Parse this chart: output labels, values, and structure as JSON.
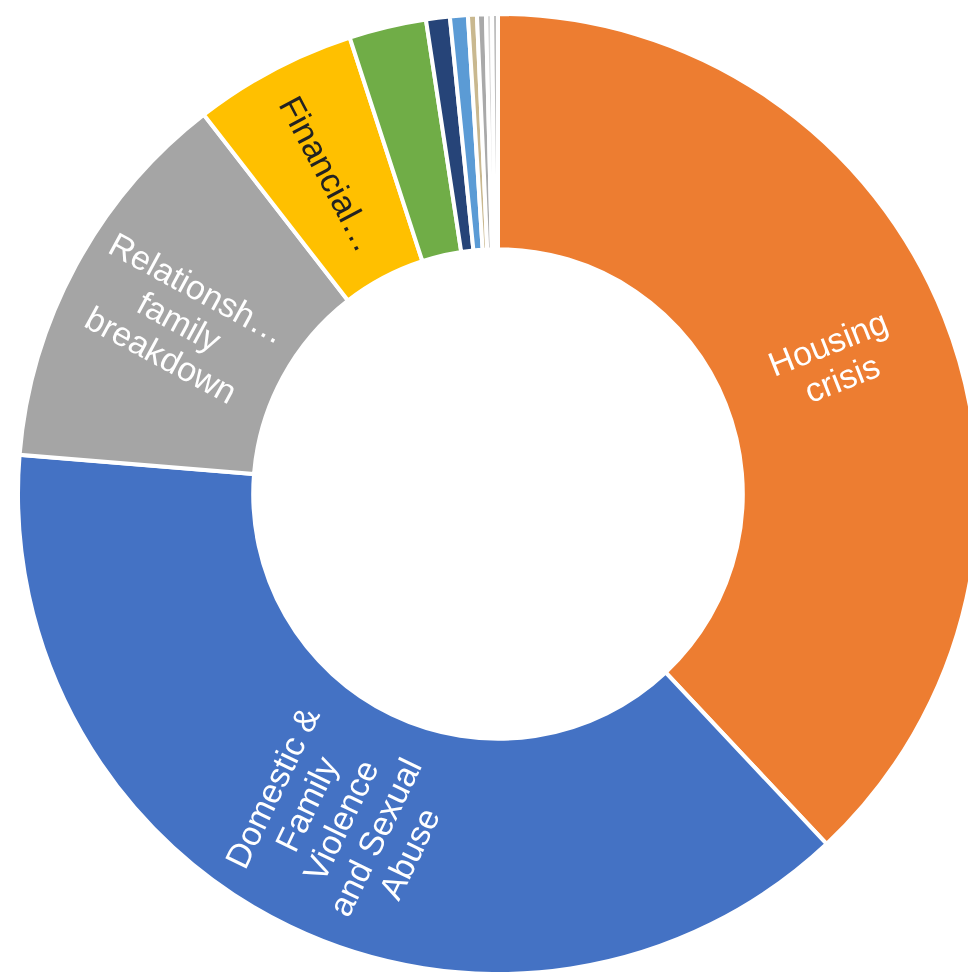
{
  "chart_data": {
    "type": "donut",
    "categories": [
      "Housing crisis",
      "Domestic & Family Violence and Sexual Abuse",
      "Relationsh… family breakdown",
      "Financial…",
      null,
      null,
      null,
      null,
      null,
      null,
      null
    ],
    "values": [
      38.0,
      38.3,
      13.2,
      5.5,
      2.6,
      0.8,
      0.6,
      0.3,
      0.3,
      0.2,
      0.2
    ],
    "colors": [
      "#ed7d31",
      "#4472c4",
      "#a5a5a5",
      "#ffc000",
      "#70ad47",
      "#264478",
      "#5b9bd5",
      "#c9b88f",
      "#a9a9a9",
      "#d9d9d9",
      "#bfbfbf"
    ]
  }
}
